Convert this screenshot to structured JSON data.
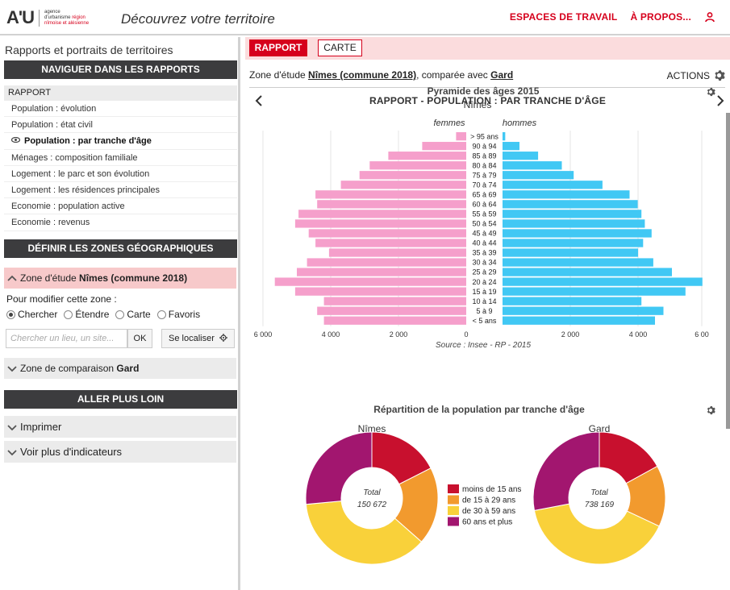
{
  "header": {
    "logo_main": "A'U",
    "logo_sub_line1": "agence",
    "logo_sub_line2": "d'urbanisme",
    "logo_sub_line2b": "région",
    "logo_sub_line3": "nîmoise et alésienne",
    "title": "Découvrez votre territoire",
    "nav": [
      "ESPACES DE TRAVAIL",
      "À PROPOS..."
    ]
  },
  "sidebar": {
    "title": "Rapports et portraits de territoires",
    "nav_heading": "NAVIGUER DANS LES RAPPORTS",
    "group_label": "RAPPORT",
    "items": [
      "Population : évolution",
      "Population : état civil",
      "Population : par tranche d'âge",
      "Ménages : composition familiale",
      "Logement : le parc et son évolution",
      "Logement : les résidences principales",
      "Economie : population active",
      "Economie : revenus"
    ],
    "active_index": 2,
    "zones_heading": "DÉFINIR LES ZONES GÉOGRAPHIQUES",
    "zone_etude_label": "Zone d'étude",
    "zone_etude_value": "Nîmes (commune 2018)",
    "modify_label": "Pour modifier cette zone :",
    "modes": [
      "Chercher",
      "Étendre",
      "Carte",
      "Favoris"
    ],
    "search_placeholder": "Chercher un lieu, un site...",
    "ok_label": "OK",
    "locate_label": "Se localiser",
    "zone_comp_label": "Zone de comparaison",
    "zone_comp_value": "Gard",
    "more_heading": "ALLER PLUS LOIN",
    "print_label": "Imprimer",
    "more_indicators_label": "Voir plus d'indicateurs"
  },
  "main": {
    "tab_rapport": "RAPPORT",
    "tab_carte": "CARTE",
    "zone_prefix": "Zone d'étude",
    "zone_etude": "Nîmes (commune 2018)",
    "compare_text": ", comparée avec",
    "zone_comp": "Gard",
    "actions_label": "ACTIONS",
    "report_title": "RAPPORT - POPULATION : PAR TRANCHE D'ÂGE"
  },
  "colors": {
    "brand_red": "#d6001c",
    "women": "#f59fcb",
    "men": "#41c8f4",
    "age_0_14": "#c8102e",
    "age_15_29": "#f29a2e",
    "age_30_59": "#f9d13a",
    "age_60_plus": "#a2166f"
  },
  "chart_data": [
    {
      "type": "bar",
      "title": "Pyramide des âges 2015",
      "subtitle": "Nîmes",
      "source": "Source : Insee - RP - 2015",
      "series_labels": [
        "femmes",
        "hommes"
      ],
      "categories": [
        "> 95 ans",
        "90 à 94",
        "85 à 89",
        "80 à 84",
        "75 à 79",
        "70 à 74",
        "65 à 69",
        "60 à 64",
        "55 à 59",
        "50 à 54",
        "45 à 49",
        "40 à 44",
        "35 à 39",
        "30 à 34",
        "25 à 29",
        "20 à 24",
        "15 à 19",
        "10 à 14",
        "5 à 9",
        "< 5 ans"
      ],
      "series": [
        {
          "name": "femmes",
          "values": [
            300,
            1300,
            2300,
            2850,
            3150,
            3700,
            4450,
            4400,
            4950,
            5050,
            4650,
            4450,
            4050,
            4700,
            5000,
            5650,
            5050,
            4200,
            4400,
            4200
          ]
        },
        {
          "name": "hommes",
          "values": [
            80,
            500,
            1050,
            1750,
            2100,
            2950,
            3750,
            3990,
            4100,
            4200,
            4400,
            4150,
            4000,
            4450,
            5000,
            5900,
            5400,
            4100,
            4750,
            4500
          ]
        }
      ],
      "xticks": [
        "6 000",
        "4 000",
        "2 000",
        "0",
        "2 000",
        "4 000",
        "6 00"
      ],
      "xlim": [
        -6000,
        6000
      ]
    },
    {
      "type": "pie",
      "title": "Répartition de la population par tranche d'âge",
      "legend": [
        "moins de 15 ans",
        "de 15 à 29 ans",
        "de 30 à 59 ans",
        "60 ans et plus"
      ],
      "center_label": "Total",
      "charts": [
        {
          "name": "Nîmes",
          "total": "150 672",
          "values": [
            17.5,
            19,
            37,
            26.5
          ]
        },
        {
          "name": "Gard",
          "total": "738 169",
          "values": [
            17,
            15,
            40,
            28
          ]
        }
      ]
    }
  ]
}
